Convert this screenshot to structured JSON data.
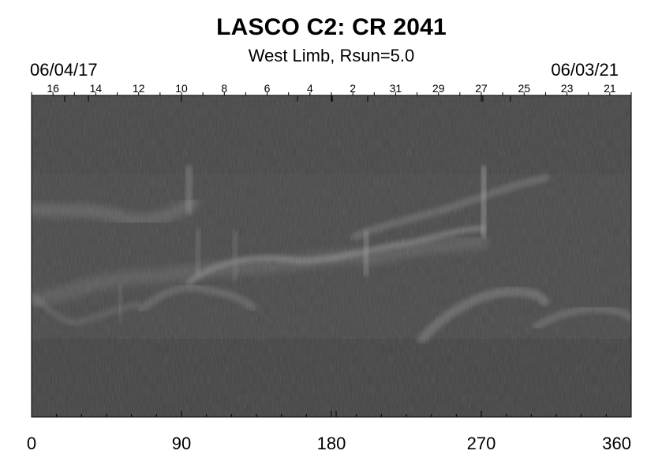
{
  "chart_data": {
    "type": "heatmap",
    "title": "LASCO C2: CR 2041",
    "subtitle": "West Limb, Rsun=5.0",
    "date_start": "06/04/17",
    "date_end": "06/03/21",
    "x_ticks": [
      0,
      90,
      180,
      270,
      360
    ],
    "xlim": [
      0,
      360
    ],
    "top_ticks": [
      "16",
      "14",
      "12",
      "10",
      "8",
      "6",
      "4",
      "2",
      "31",
      "29",
      "27",
      "25",
      "23",
      "21"
    ],
    "colormap": "grayscale",
    "background_gray": "#4a4a4a"
  }
}
